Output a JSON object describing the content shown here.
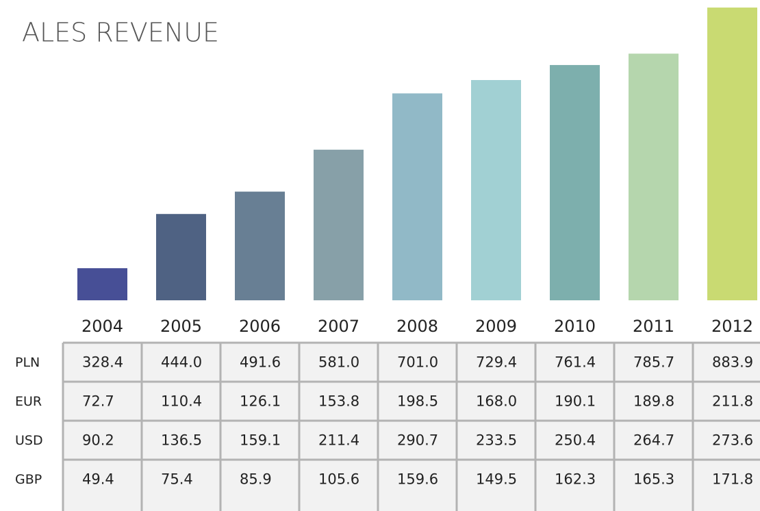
{
  "chart_data": {
    "type": "bar",
    "title": "ALES REVENUE",
    "categories": [
      "2004",
      "2005",
      "2006",
      "2007",
      "2008",
      "2009",
      "2010",
      "2011",
      "2012"
    ],
    "colors": [
      "#474f96",
      "#4f6283",
      "#687f94",
      "#87a0a8",
      "#91b9c7",
      "#a1d0d3",
      "#7dafad",
      "#b5d6ad",
      "#c9da72"
    ],
    "ylim": [
      260,
      900
    ],
    "bar_series": 0,
    "series": [
      {
        "name": "PLN",
        "values": [
          328.4,
          444.0,
          491.6,
          581.0,
          701.0,
          729.4,
          761.4,
          785.7,
          883.9
        ],
        "value_labels": [
          "328.4",
          "444.0",
          "491.6",
          "581.0",
          "701.0",
          "729.4",
          "761.4",
          "785.7",
          "883.9"
        ]
      },
      {
        "name": "EUR",
        "values": [
          72.7,
          110.4,
          126.1,
          153.8,
          198.5,
          168.0,
          190.1,
          189.8,
          211.8
        ],
        "value_labels": [
          "72.7",
          "110.4",
          "126.1",
          "153.8",
          "198.5",
          "168.0",
          "190.1",
          "189.8",
          "211.8"
        ]
      },
      {
        "name": "USD",
        "values": [
          90.2,
          136.5,
          159.1,
          211.4,
          290.7,
          233.5,
          250.4,
          264.7,
          273.6
        ],
        "value_labels": [
          "90.2",
          "136.5",
          "159.1",
          "211.4",
          "290.7",
          "233.5",
          "250.4",
          "264.7",
          "273.6"
        ]
      },
      {
        "name": "GBP",
        "values": [
          49.4,
          75.4,
          85.9,
          105.6,
          159.6,
          149.5,
          162.3,
          165.3,
          171.8
        ],
        "value_labels": [
          "49.4",
          "75.4",
          "85.9",
          "105.6",
          "159.6",
          "149.5",
          "162.3",
          "165.3",
          "171.8"
        ]
      }
    ]
  }
}
